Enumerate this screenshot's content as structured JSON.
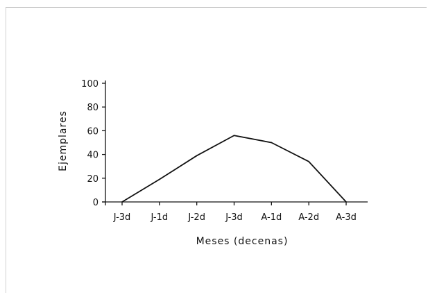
{
  "chart_data": {
    "type": "line",
    "categories": [
      "J-3d",
      "J-1d",
      "J-2d",
      "J-3d",
      "A-1d",
      "A-2d",
      "A-3d"
    ],
    "series": [
      {
        "values": [
          0,
          19,
          39,
          56,
          50,
          34,
          0
        ]
      }
    ],
    "xlabel": "Meses (decenas)",
    "ylabel": "Ejemplares",
    "ylim": [
      0,
      100
    ],
    "yticks": [
      0,
      20,
      40,
      60,
      80,
      100
    ],
    "grid": false,
    "colors": {
      "line": "#111111",
      "axis": "#111111"
    }
  }
}
